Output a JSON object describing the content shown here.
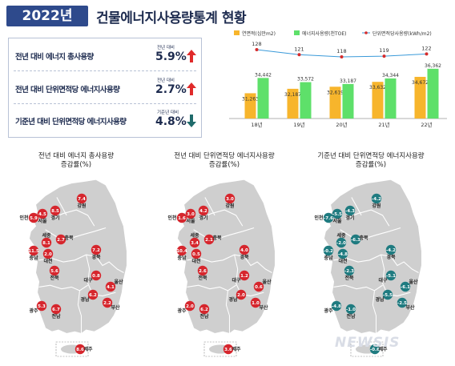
{
  "header": {
    "year_badge": "2022년",
    "title": "건물에너지사용량통계 현황"
  },
  "kpis": [
    {
      "label": "전년 대비 에너지 총사용량",
      "small": "전년 대비",
      "value": "5.9%",
      "direction": "up",
      "color": "#e02a2a"
    },
    {
      "label": "전년 대비 단위면적당 에너지사용량",
      "small": "전년 대비",
      "value": "2.7%",
      "direction": "up",
      "color": "#e02a2a"
    },
    {
      "label": "기준년 대비 단위면적당 에너지사용량",
      "small": "기준년 대비",
      "value": "4.8%",
      "direction": "down",
      "color": "#1f6b6b"
    }
  ],
  "chart_data": {
    "type": "bar",
    "categories": [
      "18년",
      "19년",
      "20년",
      "21년",
      "22년"
    ],
    "series": [
      {
        "name": "연면적(십만m2)",
        "color": "#f7b52c",
        "values": [
          31263,
          32187,
          32619,
          33632,
          34672
        ]
      },
      {
        "name": "에너지사용량(천TOE)",
        "color": "#5ee06a",
        "values": [
          34442,
          33572,
          33187,
          34344,
          36362
        ]
      }
    ],
    "line_series": {
      "name": "단위면적당사용량(kWh/m2)",
      "color": "#3a9ad9",
      "marker_color": "#d62b2b",
      "values": [
        128,
        121,
        118,
        119,
        122
      ]
    },
    "legend_position": "top"
  },
  "maps": [
    {
      "title_line1": "전년 대비 에너지 총사용량",
      "title_line2": "증감률(%)",
      "marker_color": "#d6262d",
      "regions": [
        {
          "name": "인천",
          "value": "5.9"
        },
        {
          "name": "서울",
          "value": "4.5"
        },
        {
          "name": "경기",
          "value": "8.5"
        },
        {
          "name": "강원",
          "value": "7.4"
        },
        {
          "name": "세종",
          "value": "8.1"
        },
        {
          "name": "충북",
          "value": "2.7"
        },
        {
          "name": "충남",
          "value": "11.5"
        },
        {
          "name": "대전",
          "value": "2.0"
        },
        {
          "name": "경북",
          "value": "7.2"
        },
        {
          "name": "대구",
          "value": "0.8"
        },
        {
          "name": "울산",
          "value": "4.1"
        },
        {
          "name": "전북",
          "value": "5.6"
        },
        {
          "name": "경남",
          "value": "6.2"
        },
        {
          "name": "부산",
          "value": "2.2"
        },
        {
          "name": "광주",
          "value": "5.3"
        },
        {
          "name": "전남",
          "value": "6.7"
        },
        {
          "name": "제주",
          "value": "8.6"
        }
      ]
    },
    {
      "title_line1": "전년 대비 단위면적당 에너지사용량",
      "title_line2": "증감률(%)",
      "marker_color": "#d6262d",
      "regions": [
        {
          "name": "인천",
          "value": "1.6"
        },
        {
          "name": "서울",
          "value": "3.0"
        },
        {
          "name": "경기",
          "value": "4.2"
        },
        {
          "name": "강원",
          "value": "3.0"
        },
        {
          "name": "세종",
          "value": "3.4"
        },
        {
          "name": "충북",
          "value": "2.1"
        },
        {
          "name": "충남",
          "value": "10.4"
        },
        {
          "name": "대전",
          "value": "0.5"
        },
        {
          "name": "경북",
          "value": "4.0"
        },
        {
          "name": "대구",
          "value": "1.2"
        },
        {
          "name": "울산",
          "value": "0.6"
        },
        {
          "name": "전북",
          "value": "2.6"
        },
        {
          "name": "경남",
          "value": "2.0"
        },
        {
          "name": "부산",
          "value": "1.0"
        },
        {
          "name": "광주",
          "value": "2.0"
        },
        {
          "name": "전남",
          "value": "6.2"
        },
        {
          "name": "제주",
          "value": "3.6"
        }
      ]
    },
    {
      "title_line1": "기준년 대비 단위면적당 에너지사용량",
      "title_line2": "증감률(%)",
      "marker_color": "#1f7b80",
      "regions": [
        {
          "name": "인천",
          "value": "-7.6"
        },
        {
          "name": "서울",
          "value": "-5.5"
        },
        {
          "name": "경기",
          "value": "-4.3"
        },
        {
          "name": "강원",
          "value": "-4.2"
        },
        {
          "name": "세종",
          "value": "-2.0"
        },
        {
          "name": "충북",
          "value": "-6.3"
        },
        {
          "name": "충남",
          "value": "-0.2"
        },
        {
          "name": "대전",
          "value": "-4.8"
        },
        {
          "name": "경북",
          "value": "-4.2"
        },
        {
          "name": "대구",
          "value": "-5.1"
        },
        {
          "name": "울산",
          "value": "-6.1"
        },
        {
          "name": "전북",
          "value": "-2.3"
        },
        {
          "name": "경남",
          "value": "-5.5"
        },
        {
          "name": "부산",
          "value": "-2.5"
        },
        {
          "name": "광주",
          "value": "-4.8"
        },
        {
          "name": "전남",
          "value": "-1.0"
        },
        {
          "name": "제주",
          "value": "-0.6"
        }
      ]
    }
  ],
  "watermark": "NEWSIS"
}
